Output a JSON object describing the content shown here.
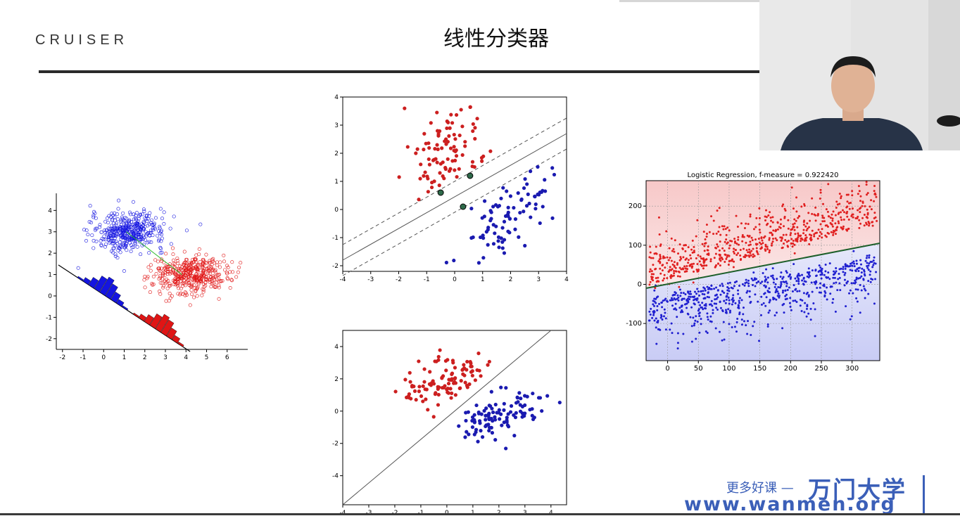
{
  "slide": {
    "logo": "CRUISER",
    "title": "线性分类器"
  },
  "watermark": {
    "tagline": "更多好课 —",
    "brand": "万门大学",
    "url": "www.wanmen.org"
  },
  "chart_data": [
    {
      "type": "scatter",
      "name_hint": "projection",
      "xlim": [
        -2.3,
        7
      ],
      "ylim": [
        -2.5,
        4.8
      ],
      "xticks": [
        "-2",
        "-1",
        "0",
        "1",
        "2",
        "3",
        "4",
        "5",
        "6"
      ],
      "yticks": [
        "4",
        "3",
        "2",
        "1",
        "0",
        "-1",
        "-2"
      ],
      "series": [
        {
          "color": "#1515e0",
          "marker": "open-circle",
          "center": [
            1.2,
            3.0
          ]
        },
        {
          "color": "#e01515",
          "marker": "open-circle",
          "center": [
            4.2,
            1.0
          ]
        }
      ]
    },
    {
      "type": "scatter",
      "name_hint": "svm-margin",
      "xlim": [
        -4,
        4
      ],
      "ylim": [
        -2.2,
        4
      ],
      "xticks": [
        "-4",
        "-3",
        "-2",
        "-1",
        "0",
        "1",
        "2",
        "3",
        "4"
      ],
      "yticks": [
        "4",
        "3",
        "2",
        "1",
        "0",
        "-1",
        "-2"
      ],
      "series": [
        {
          "color": "#cc1f1f",
          "center": [
            -0.3,
            2.0
          ]
        },
        {
          "color": "#1a1ab0",
          "center": [
            1.9,
            0.0
          ]
        }
      ],
      "support_vectors": [
        [
          -0.5,
          0.6
        ],
        [
          0.55,
          1.2
        ],
        [
          0.3,
          0.1
        ]
      ]
    },
    {
      "type": "scatter",
      "name_hint": "linear-separable",
      "xlim": [
        -4,
        4.6
      ],
      "ylim": [
        -5.8,
        5
      ],
      "xticks": [
        "-4",
        "-3",
        "-2",
        "-1",
        "0",
        "1",
        "2",
        "3",
        "4"
      ],
      "yticks": [
        "4",
        "2",
        "0",
        "-2",
        "-4"
      ],
      "series": [
        {
          "color": "#cc1f1f",
          "center": [
            0.0,
            1.9
          ]
        },
        {
          "color": "#1a1ab0",
          "center": [
            2.0,
            -0.2
          ]
        }
      ]
    },
    {
      "type": "scatter",
      "name_hint": "logistic-regression",
      "title": "Logistic Regression, f-measure = 0.922420",
      "xlim": [
        -35,
        345
      ],
      "ylim": [
        -195,
        265
      ],
      "xticks": [
        "0",
        "50",
        "100",
        "150",
        "200",
        "250",
        "300"
      ],
      "yticks": [
        "200",
        "100",
        "0",
        "-100"
      ],
      "boundary": {
        "y_at_x_min": -10,
        "y_at_x_max": 105
      },
      "series": [
        {
          "color": "#e02020"
        },
        {
          "color": "#2020d0"
        }
      ]
    }
  ]
}
